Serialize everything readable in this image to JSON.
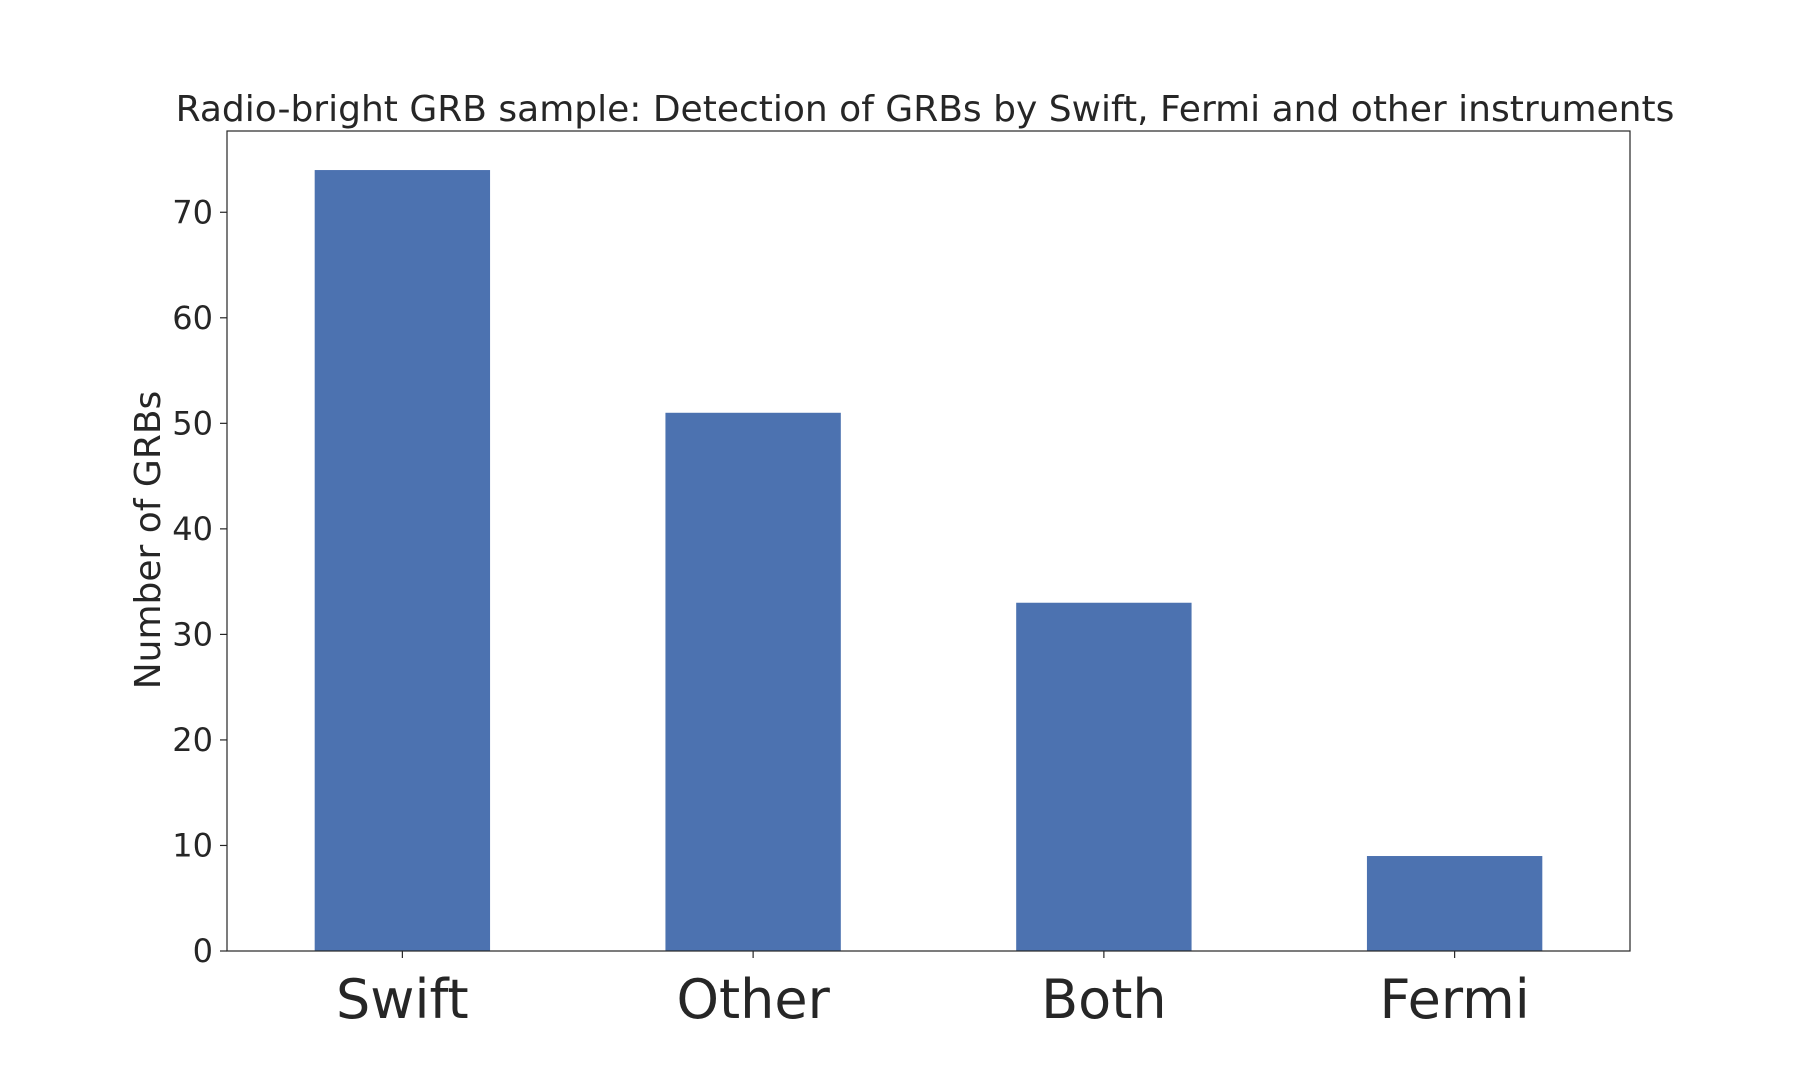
{
  "chart_data": {
    "type": "bar",
    "title": "Radio-bright GRB sample: Detection of GRBs by Swift, Fermi and other instruments",
    "xlabel": "",
    "ylabel": "Number of GRBs",
    "categories": [
      "Swift",
      "Other",
      "Both",
      "Fermi"
    ],
    "values": [
      74,
      51,
      33,
      9
    ],
    "ylim": [
      0,
      77.7
    ],
    "yticks": [
      0,
      10,
      20,
      30,
      40,
      50,
      60,
      70
    ],
    "bar_color": "#4c72b0",
    "grid": false,
    "legend": "none"
  }
}
